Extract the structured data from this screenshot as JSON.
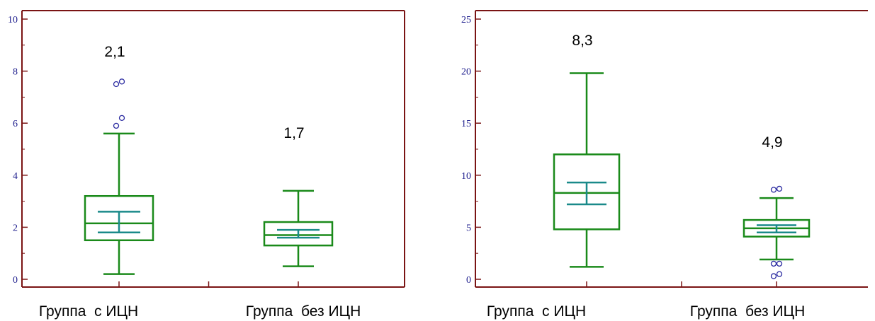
{
  "colors": {
    "axis": "#7a1414",
    "box": "#1a8a1a",
    "ci": "#1a8a8a",
    "outlier": "#2a2aa0",
    "tick_text": "#1c1c8c"
  },
  "chart_data": [
    {
      "type": "box",
      "ylim": [
        0,
        10
      ],
      "yticks": [
        "0",
        "2",
        "4",
        "6",
        "8",
        "10"
      ],
      "categories": [
        "Группа  с ИЦН",
        "Группа  без ИЦН"
      ],
      "boxes": [
        {
          "category": "Группа  с ИЦН",
          "median_label": "2,1",
          "min": 0.2,
          "q1": 1.5,
          "median": 2.15,
          "q3": 3.2,
          "max": 5.6,
          "ci_low": 1.8,
          "ci_high": 2.6,
          "outliers": [
            5.9,
            6.2,
            7.5,
            7.6
          ]
        },
        {
          "category": "Группа  без ИЦН",
          "median_label": "1,7",
          "min": 0.5,
          "q1": 1.3,
          "median": 1.7,
          "q3": 2.2,
          "max": 3.4,
          "ci_low": 1.6,
          "ci_high": 1.9,
          "outliers": []
        }
      ]
    },
    {
      "type": "box",
      "ylim": [
        0,
        25
      ],
      "yticks": [
        "0",
        "5",
        "10",
        "15",
        "20",
        "25"
      ],
      "categories": [
        "Группа  с ИЦН",
        "Группа  без ИЦН"
      ],
      "boxes": [
        {
          "category": "Группа  с ИЦН",
          "median_label": "8,3",
          "min": 1.2,
          "q1": 4.8,
          "median": 8.3,
          "q3": 12.0,
          "max": 19.8,
          "ci_low": 7.2,
          "ci_high": 9.3,
          "outliers": []
        },
        {
          "category": "Группа  без ИЦН",
          "median_label": "4,9",
          "min": 1.9,
          "q1": 4.1,
          "median": 4.9,
          "q3": 5.7,
          "max": 7.8,
          "ci_low": 4.5,
          "ci_high": 5.2,
          "outliers": [
            0.3,
            0.5,
            1.5,
            1.5,
            8.6,
            8.7
          ]
        }
      ]
    }
  ]
}
